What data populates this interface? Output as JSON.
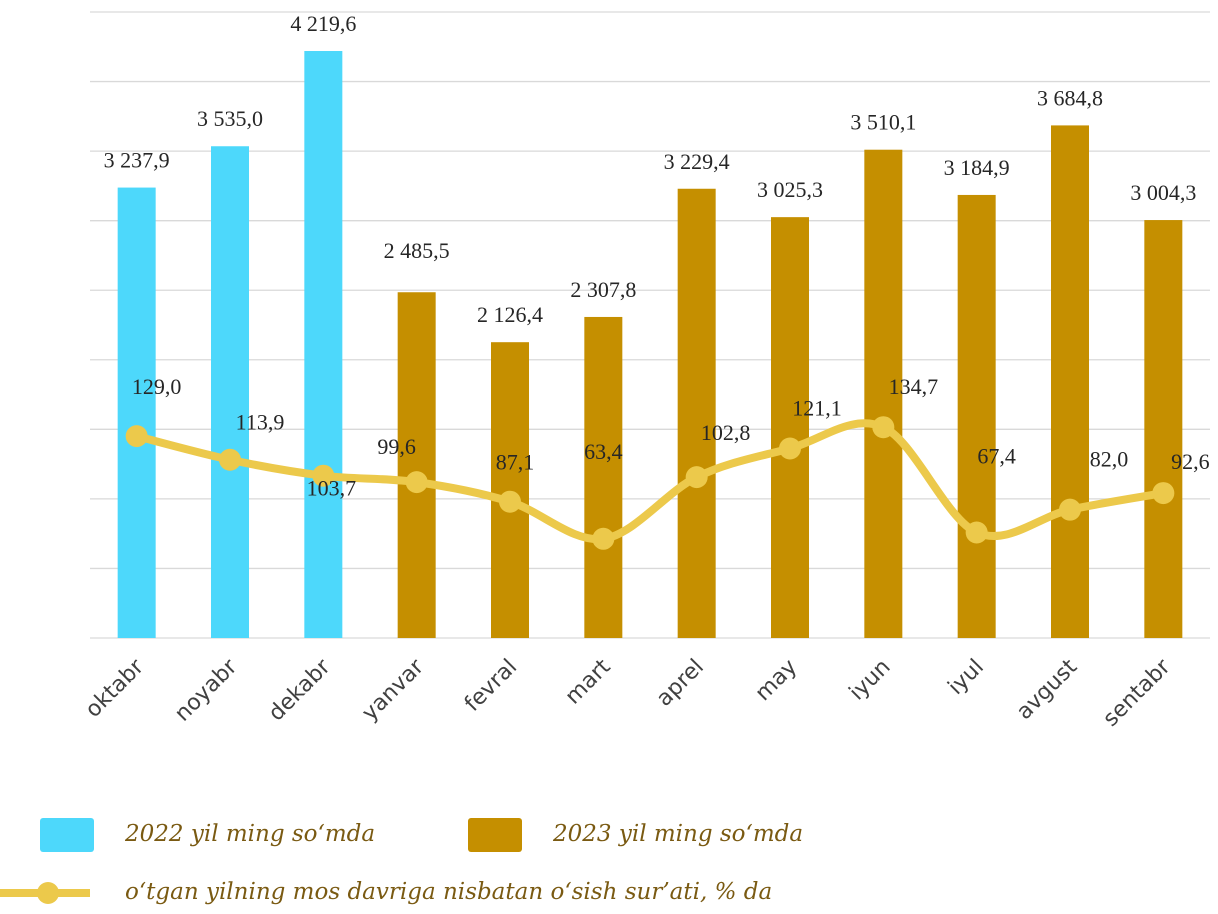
{
  "chart_data": {
    "type": "bar",
    "categories": [
      "oktabr",
      "noyabr",
      "dekabr",
      "yanvar",
      "fevral",
      "mart",
      "aprel",
      "may",
      "iyun",
      "iyul",
      "avgust",
      "sentabr"
    ],
    "series": [
      {
        "name": "2022 yil ming so‘mda",
        "type": "bar",
        "color": "#4dd8fb",
        "values": [
          3237.9,
          3535.0,
          4219.6,
          null,
          null,
          null,
          null,
          null,
          null,
          null,
          null,
          null
        ],
        "value_labels": [
          "3 237,9",
          "3 535,0",
          "4 219,6",
          null,
          null,
          null,
          null,
          null,
          null,
          null,
          null,
          null
        ]
      },
      {
        "name": "2023 yil ming so‘mda",
        "type": "bar",
        "color": "#c58f00",
        "values": [
          null,
          null,
          null,
          2485.5,
          2126.4,
          2307.8,
          3229.4,
          3025.3,
          3510.1,
          3184.9,
          3684.8,
          3004.3
        ],
        "value_labels": [
          null,
          null,
          null,
          "2 485,5",
          "2 126,4",
          "2 307,8",
          "3 229,4",
          "3 025,3",
          "3 510,1",
          "3 184,9",
          "3 684,8",
          "3 004,3"
        ]
      },
      {
        "name": "o‘tgan yilning mos davriga nisbatan o‘sish sur’ati, % da",
        "type": "line",
        "axis": "y2",
        "color": "#ecc94b",
        "values": [
          129.0,
          113.9,
          103.7,
          99.6,
          87.1,
          63.4,
          102.8,
          121.1,
          134.7,
          67.4,
          82.0,
          92.6
        ],
        "value_labels": [
          "129,0",
          "113,9",
          "103,7",
          "99,6",
          "87,1",
          "63,4",
          "102,8",
          "121,1",
          "134,7",
          "67,4",
          "82,0",
          "92,6"
        ]
      }
    ],
    "ylim": [
      0,
      4500
    ],
    "yticks": [
      0,
      500,
      1000,
      1500,
      2000,
      2500,
      3000,
      3500,
      4000,
      4500
    ],
    "y2lim": [
      0,
      400
    ],
    "grid": true
  }
}
